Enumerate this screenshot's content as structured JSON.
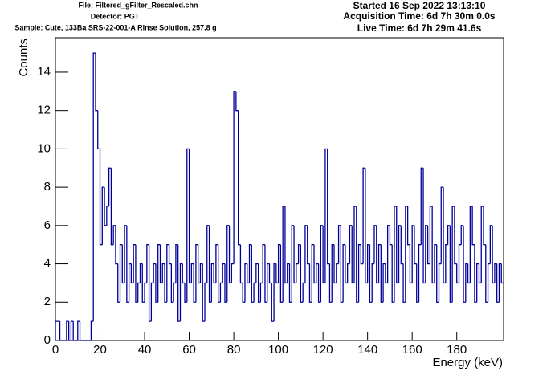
{
  "chart_data": {
    "type": "histogram",
    "header": [
      "File: Filtered_gFilter_Rescaled.chn",
      "Detector: PGT",
      "Sample: Cute, 133Ba SRS-22-001-A Rinse Solution, 257.8 g"
    ],
    "info": [
      "Started 16 Sep 2022 13:13:10",
      "Acquisition Time: 6d 7h 30m 0.0s",
      "Live Time: 6d 7h 29m 41.6s"
    ],
    "x_label": "Energy (keV)",
    "y_label": "Counts",
    "color": "#000099",
    "xlim": [
      0,
      201
    ],
    "ylim": [
      0,
      15.8
    ],
    "xticks": [
      0,
      20,
      40,
      60,
      80,
      100,
      120,
      140,
      160,
      180
    ],
    "yticks": [
      0,
      2,
      4,
      6,
      8,
      10,
      12,
      14
    ],
    "bins": [
      0,
      1,
      2,
      3,
      4,
      5,
      6,
      7,
      8,
      9,
      10,
      11,
      12,
      13,
      14,
      15,
      16,
      17,
      18,
      19,
      20,
      21,
      22,
      23,
      24,
      25,
      26,
      27,
      28,
      29,
      30,
      31,
      32,
      33,
      34,
      35,
      36,
      37,
      38,
      39,
      40,
      41,
      42,
      43,
      44,
      45,
      46,
      47,
      48,
      49,
      50,
      51,
      52,
      53,
      54,
      55,
      56,
      57,
      58,
      59,
      60,
      61,
      62,
      63,
      64,
      65,
      66,
      67,
      68,
      69,
      70,
      71,
      72,
      73,
      74,
      75,
      76,
      77,
      78,
      79,
      80,
      81,
      82,
      83,
      84,
      85,
      86,
      87,
      88,
      89,
      90,
      91,
      92,
      93,
      94,
      95,
      96,
      97,
      98,
      99,
      100,
      101,
      102,
      103,
      104,
      105,
      106,
      107,
      108,
      109,
      110,
      111,
      112,
      113,
      114,
      115,
      116,
      117,
      118,
      119,
      120,
      121,
      122,
      123,
      124,
      125,
      126,
      127,
      128,
      129,
      130,
      131,
      132,
      133,
      134,
      135,
      136,
      137,
      138,
      139,
      140,
      141,
      142,
      143,
      144,
      145,
      146,
      147,
      148,
      149,
      150,
      151,
      152,
      153,
      154,
      155,
      156,
      157,
      158,
      159,
      160,
      161,
      162,
      163,
      164,
      165,
      166,
      167,
      168,
      169,
      170,
      171,
      172,
      173,
      174,
      175,
      176,
      177,
      178,
      179,
      180,
      181,
      182,
      183,
      184,
      185,
      186,
      187,
      188,
      189,
      190,
      191,
      192,
      193,
      194,
      195,
      196,
      197,
      198,
      199,
      200,
      201
    ],
    "values": [
      1,
      1,
      0,
      0,
      0,
      1,
      0,
      1,
      0,
      0,
      1,
      0,
      0,
      0,
      0,
      0,
      1,
      15,
      12,
      10,
      5,
      8,
      6,
      7,
      9,
      5,
      6,
      4,
      2,
      5,
      3,
      6,
      2,
      4,
      3,
      5,
      2,
      3,
      4,
      2,
      3,
      5,
      1,
      3,
      4,
      2,
      5,
      3,
      4,
      2,
      5,
      4,
      2,
      3,
      5,
      1,
      4,
      3,
      2,
      10,
      3,
      4,
      2,
      5,
      3,
      4,
      1,
      3,
      6,
      2,
      4,
      3,
      5,
      2,
      3,
      4,
      2,
      6,
      3,
      4,
      13,
      12,
      5,
      3,
      2,
      4,
      3,
      5,
      2,
      3,
      4,
      2,
      3,
      5,
      2,
      4,
      3,
      1,
      4,
      3,
      5,
      2,
      7,
      3,
      4,
      2,
      6,
      3,
      4,
      5,
      2,
      3,
      6,
      4,
      2,
      5,
      3,
      4,
      2,
      6,
      3,
      10,
      4,
      2,
      5,
      3,
      4,
      6,
      2,
      5,
      3,
      4,
      6,
      3,
      7,
      2,
      5,
      4,
      9,
      3,
      5,
      2,
      4,
      6,
      3,
      5,
      2,
      4,
      3,
      6,
      5,
      2,
      7,
      3,
      6,
      4,
      2,
      7,
      5,
      3,
      6,
      4,
      2,
      5,
      9,
      3,
      6,
      4,
      7,
      3,
      5,
      2,
      4,
      8,
      3,
      5,
      6,
      2,
      7,
      4,
      3,
      5,
      6,
      2,
      4,
      3,
      7,
      5,
      2,
      4,
      3,
      7,
      5,
      2,
      4,
      6,
      3,
      4,
      2,
      4,
      3
    ]
  }
}
